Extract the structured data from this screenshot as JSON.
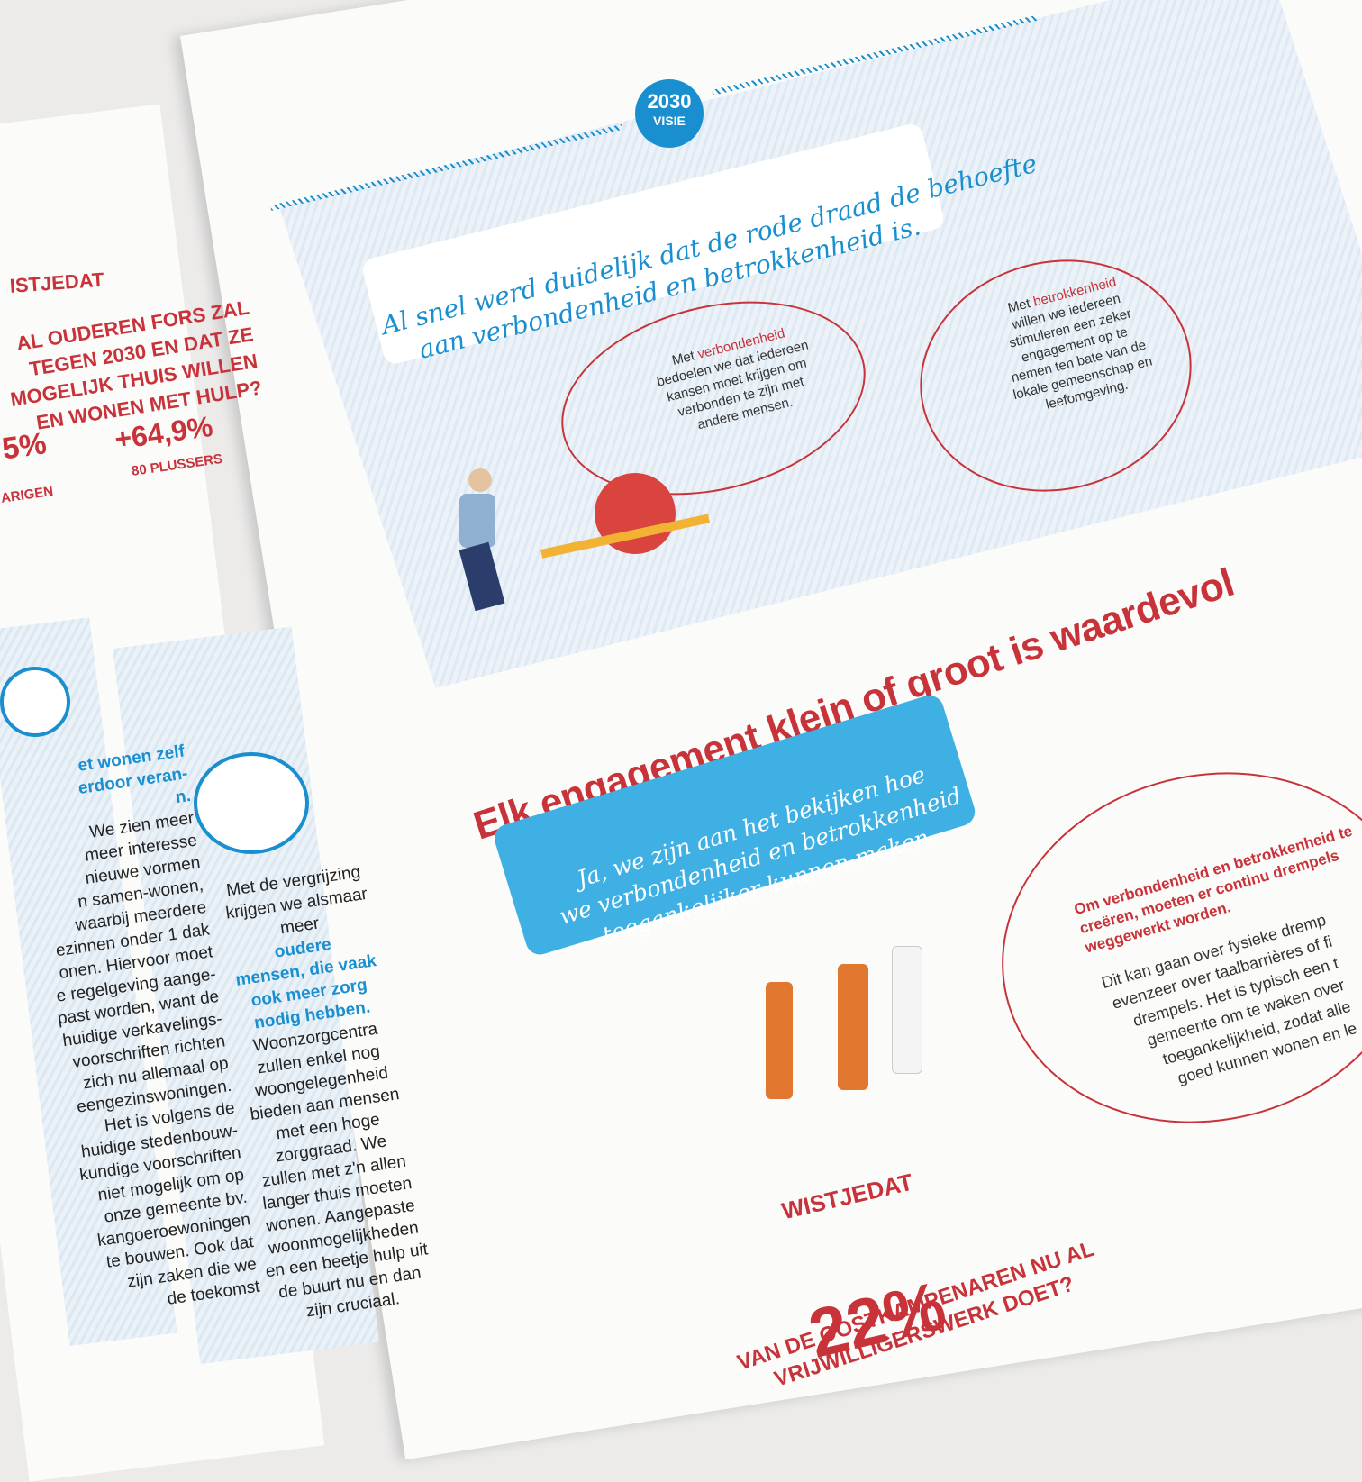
{
  "badge": {
    "year": "2030",
    "label": "VISIE"
  },
  "quote1": [
    "Al snel werd duidelijk dat de rode draad de behoefte",
    "aan verbondenheid en betrokkenheid is."
  ],
  "bubble1": {
    "pre": "Met",
    "highlight": "verbondenheid",
    "lines": [
      "bedoelen we dat iedereen",
      "kansen moet krijgen om",
      "verbonden te zijn met",
      "andere mensen."
    ]
  },
  "bubble2": {
    "pre": "Met",
    "highlight": "betrokkenheid",
    "lines": [
      "willen we iedereen",
      "stimuleren een zeker",
      "engagement op te",
      "nemen ten bate van de",
      "lokale gemeenschap en",
      "leefomgeving."
    ]
  },
  "headline": "Elk engagement klein of groot is waardevol",
  "quote2": [
    "Ja, we zijn aan het bekijken hoe",
    "we verbondenheid en betrokkenheid",
    "toegankelijker kunnen maken."
  ],
  "bubble3": {
    "intro": [
      "Om verbondenheid en betrokkenheid te",
      "creëren, moeten er continu drempels",
      "weggewerkt worden."
    ],
    "body": [
      "Dit kan gaan over fysieke dremp",
      "evenzeer over taalbarrières of fi",
      "drempels. Het is typisch een t",
      "gemeente om te waken over",
      "toegankelijkheid, zodat alle",
      "goed kunnen wonen en le"
    ]
  },
  "fact": {
    "label": "WISTJEDAT",
    "value": "22%",
    "lines": [
      "VAN DE OOSTKAMPENAREN NU AL",
      "VRIJWILLIGERSWERK DOET?"
    ]
  },
  "left": {
    "fact_label": "ISTJEDAT",
    "question": [
      "AL OUDEREN FORS ZAL",
      "TEGEN 2030 EN DAT ZE",
      "MOGELIJK THUIS WILLEN",
      "EN WONEN MET HULP?"
    ],
    "stat1": {
      "value": "5%",
      "label": "ARIGEN"
    },
    "stat2": {
      "value": "+64,9%",
      "label": "80 PLUSSERS"
    },
    "col1": {
      "emphasis": [
        "et wonen zelf",
        "erdoor veran-",
        "n."
      ],
      "rest": [
        "We zien meer",
        "meer interesse",
        "nieuwe vormen",
        "n samen-wonen,",
        "waarbij meerdere",
        "ezinnen onder 1 dak",
        "onen. Hiervoor moet",
        "e regelgeving aange-",
        "past worden, want de",
        "huidige verkavelings-",
        "voorschriften richten",
        "zich nu allemaal op",
        "eengezinswoningen.",
        "Het is volgens de",
        "huidige stedenbouw-",
        "kundige voorschriften",
        "niet mogelijk om op",
        "onze gemeente bv.",
        "kangoeroewoningen",
        "te bouwen. Ook dat",
        "zijn zaken die we",
        "de toekomst"
      ]
    },
    "col2": {
      "intro": [
        "Met de vergrijzing",
        "krijgen we alsmaar",
        "meer"
      ],
      "emphasis": [
        "oudere",
        "mensen, die vaak",
        "ook meer zorg",
        "nodig hebben."
      ],
      "rest": [
        "Woonzorgcentra",
        "zullen enkel nog",
        "woongelegenheid",
        "bieden aan mensen",
        "met een hoge",
        "zorggraad. We",
        "zullen met z'n allen",
        "langer thuis moeten",
        "wonen. Aangepaste",
        "woonmogelijkheden",
        "en een beetje hulp uit",
        "de buurt nu en dan",
        "zijn cruciaal."
      ]
    }
  }
}
